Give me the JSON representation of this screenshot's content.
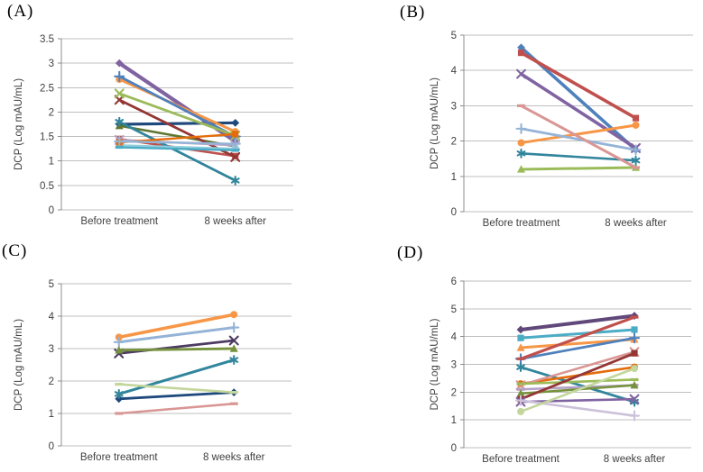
{
  "figure": {
    "background": "#FFFFFF",
    "text_color": "#3F3F3F",
    "grid_color": "#BFBFBF",
    "axis_color": "#8C8C8C"
  },
  "chart_data": [
    {
      "type": "line",
      "panel_label": "(A)",
      "title": "",
      "xlabel": "",
      "ylabel": "DCP (Log mAU/mL)",
      "categories": [
        "Before treatment",
        "8 weeks after"
      ],
      "ylim": [
        0,
        3.5
      ],
      "yticks": [
        "0",
        "0.5",
        "1",
        "1.5",
        "2",
        "2.5",
        "3",
        "3.5"
      ],
      "grid": true,
      "legend": "none",
      "series": [
        {
          "color": "#1F497D",
          "marker": "diamond",
          "lw": 3.2,
          "values": [
            1.75,
            1.78
          ]
        },
        {
          "color": "#C0504D",
          "marker": "square",
          "lw": 2.6,
          "values": [
            1.45,
            1.1
          ]
        },
        {
          "color": "#5F7530",
          "marker": "triangle",
          "lw": 2.6,
          "values": [
            1.72,
            1.3
          ]
        },
        {
          "color": "#8064A2",
          "marker": "diamond",
          "lw": 4.2,
          "values": [
            3.0,
            1.4
          ]
        },
        {
          "color": "#31859C",
          "marker": "asterisk",
          "lw": 2.8,
          "values": [
            1.8,
            0.6
          ]
        },
        {
          "color": "#F79646",
          "marker": "circle",
          "lw": 3.0,
          "values": [
            2.67,
            1.6
          ]
        },
        {
          "color": "#4F81BD",
          "marker": "plus",
          "lw": 2.8,
          "values": [
            2.73,
            1.5
          ]
        },
        {
          "color": "#943634",
          "marker": "x",
          "lw": 2.8,
          "values": [
            2.25,
            1.08
          ]
        },
        {
          "color": "#9BBB59",
          "marker": "x",
          "lw": 2.8,
          "values": [
            2.38,
            1.52
          ]
        },
        {
          "color": "#B3A2C7",
          "marker": "x",
          "lw": 2.4,
          "values": [
            1.43,
            1.32
          ]
        },
        {
          "color": "#92CDDC",
          "marker": "square",
          "lw": 2.4,
          "values": [
            1.32,
            1.25
          ]
        },
        {
          "color": "#E46C0A",
          "marker": "square",
          "lw": 2.4,
          "values": [
            1.38,
            1.55
          ]
        },
        {
          "color": "#95B3D7",
          "marker": "plus",
          "lw": 2.4,
          "values": [
            1.4,
            1.35
          ]
        },
        {
          "color": "#4BACC6",
          "marker": "dash",
          "lw": 2.4,
          "values": [
            1.28,
            1.22
          ]
        }
      ]
    },
    {
      "type": "line",
      "panel_label": "(B)",
      "title": "",
      "xlabel": "",
      "ylabel": "DCP (Log mAU/mL)",
      "categories": [
        "Before treatment",
        "8 weeks after"
      ],
      "ylim": [
        0,
        5
      ],
      "yticks": [
        "0",
        "1",
        "2",
        "3",
        "4",
        "5"
      ],
      "grid": true,
      "legend": "none",
      "series": [
        {
          "color": "#4F81BD",
          "marker": "diamond",
          "lw": 3.6,
          "values": [
            4.65,
            1.75
          ]
        },
        {
          "color": "#C0504D",
          "marker": "square",
          "lw": 3.6,
          "values": [
            4.5,
            2.65
          ]
        },
        {
          "color": "#9BBB59",
          "marker": "triangle",
          "lw": 3.0,
          "values": [
            1.2,
            1.25
          ]
        },
        {
          "color": "#8064A2",
          "marker": "x",
          "lw": 3.6,
          "values": [
            3.9,
            1.8
          ]
        },
        {
          "color": "#31859C",
          "marker": "asterisk",
          "lw": 2.6,
          "values": [
            1.65,
            1.45
          ]
        },
        {
          "color": "#F79646",
          "marker": "circle",
          "lw": 3.0,
          "values": [
            1.95,
            2.45
          ]
        },
        {
          "color": "#95B3D7",
          "marker": "plus",
          "lw": 2.8,
          "values": [
            2.35,
            1.75
          ]
        },
        {
          "color": "#D99694",
          "marker": "dash",
          "lw": 3.0,
          "values": [
            3.0,
            1.25
          ]
        }
      ]
    },
    {
      "type": "line",
      "panel_label": "(C)",
      "title": "",
      "xlabel": "",
      "ylabel": "DCP (Log mAU/mL)",
      "categories": [
        "Before treatment",
        "8 weeks after"
      ],
      "ylim": [
        0,
        5
      ],
      "yticks": [
        "0",
        "1",
        "2",
        "3",
        "4",
        "5"
      ],
      "grid": true,
      "legend": "none",
      "series": [
        {
          "color": "#1F497D",
          "marker": "diamond",
          "lw": 2.8,
          "values": [
            1.45,
            1.65
          ]
        },
        {
          "color": "#F79646",
          "marker": "circle",
          "lw": 3.6,
          "values": [
            3.35,
            4.05
          ]
        },
        {
          "color": "#95B3D7",
          "marker": "plus",
          "lw": 3.0,
          "values": [
            3.2,
            3.65
          ]
        },
        {
          "color": "#4D3B62",
          "marker": "x",
          "lw": 2.8,
          "values": [
            2.85,
            3.25
          ]
        },
        {
          "color": "#76923C",
          "marker": "triangle",
          "lw": 2.8,
          "values": [
            2.95,
            3.0
          ]
        },
        {
          "color": "#31859C",
          "marker": "asterisk",
          "lw": 3.0,
          "values": [
            1.6,
            2.65
          ]
        },
        {
          "color": "#C3D69B",
          "marker": "dash",
          "lw": 2.6,
          "values": [
            1.9,
            1.65
          ]
        },
        {
          "color": "#D99694",
          "marker": "dash",
          "lw": 2.6,
          "values": [
            1.0,
            1.3
          ]
        }
      ]
    },
    {
      "type": "line",
      "panel_label": "(D)",
      "title": "",
      "xlabel": "",
      "ylabel": "DCP (Log mAU/mL)",
      "categories": [
        "Before treatment",
        "8 weeks after"
      ],
      "ylim": [
        0,
        6
      ],
      "yticks": [
        "0",
        "1",
        "2",
        "3",
        "4",
        "5",
        "6"
      ],
      "grid": true,
      "legend": "none",
      "series": [
        {
          "color": "#60497A",
          "marker": "diamond",
          "lw": 4.0,
          "values": [
            4.25,
            4.75
          ]
        },
        {
          "color": "#4BACC6",
          "marker": "square",
          "lw": 3.0,
          "values": [
            3.95,
            4.25
          ]
        },
        {
          "color": "#F79646",
          "marker": "triangle",
          "lw": 3.0,
          "values": [
            3.6,
            3.9
          ]
        },
        {
          "color": "#4F81BD",
          "marker": "plus",
          "lw": 2.8,
          "values": [
            3.2,
            3.95
          ]
        },
        {
          "color": "#C0504D",
          "marker": "dash",
          "lw": 3.2,
          "values": [
            3.2,
            4.7
          ]
        },
        {
          "color": "#31859C",
          "marker": "asterisk",
          "lw": 2.8,
          "values": [
            2.9,
            1.65
          ]
        },
        {
          "color": "#E46C0A",
          "marker": "circle",
          "lw": 2.6,
          "values": [
            2.3,
            2.9
          ]
        },
        {
          "color": "#D99694",
          "marker": "x",
          "lw": 2.6,
          "values": [
            2.25,
            3.45
          ]
        },
        {
          "color": "#9BBB59",
          "marker": "dash",
          "lw": 2.6,
          "values": [
            2.3,
            2.45
          ]
        },
        {
          "color": "#B3A2C7",
          "marker": "dash",
          "lw": 2.6,
          "values": [
            2.1,
            2.25
          ]
        },
        {
          "color": "#76923C",
          "marker": "triangle",
          "lw": 2.6,
          "values": [
            1.95,
            2.25
          ]
        },
        {
          "color": "#943634",
          "marker": "square",
          "lw": 2.8,
          "values": [
            1.75,
            3.4
          ]
        },
        {
          "color": "#8064A2",
          "marker": "x",
          "lw": 2.6,
          "values": [
            1.65,
            1.75
          ]
        },
        {
          "color": "#CCC1DA",
          "marker": "plus",
          "lw": 2.6,
          "values": [
            1.7,
            1.15
          ]
        },
        {
          "color": "#C3D69B",
          "marker": "circle",
          "lw": 2.6,
          "values": [
            1.3,
            2.85
          ]
        }
      ]
    }
  ]
}
